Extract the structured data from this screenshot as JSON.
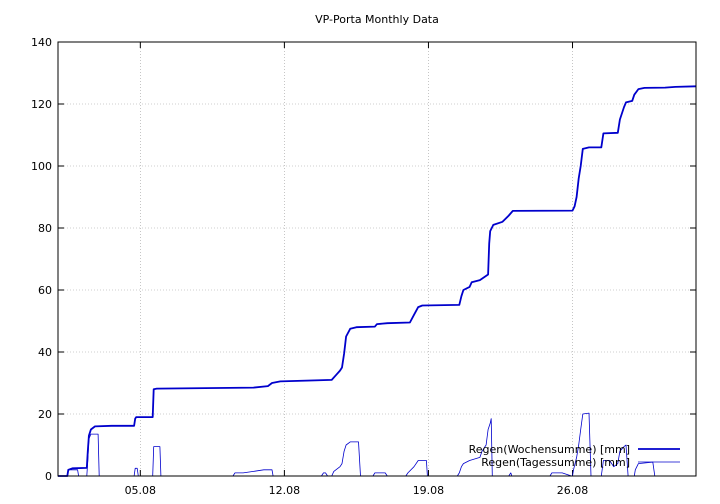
{
  "chart_data": {
    "type": "line",
    "title": "VP-Porta Monthly Data",
    "xlabel": "",
    "ylabel": "",
    "xlim": [
      0,
      31
    ],
    "ylim": [
      0,
      140
    ],
    "y_ticks": [
      0,
      20,
      40,
      60,
      80,
      100,
      120,
      140
    ],
    "x_ticks": [
      {
        "label": "05.08",
        "value": 4.0
      },
      {
        "label": "12.08",
        "value": 11.0
      },
      {
        "label": "19.08",
        "value": 18.0
      },
      {
        "label": "26.08",
        "value": 25.0
      }
    ],
    "grid": true,
    "legend_position": "bottom-right",
    "series": [
      {
        "name": "Regen(Wochensumme) [mm]",
        "color": "#0000cc",
        "style": "bold",
        "points": [
          [
            0,
            0
          ],
          [
            0.45,
            0
          ],
          [
            0.5,
            2
          ],
          [
            0.7,
            2.5
          ],
          [
            1.4,
            2.6
          ],
          [
            1.45,
            8
          ],
          [
            1.5,
            13
          ],
          [
            1.6,
            15
          ],
          [
            1.8,
            16
          ],
          [
            2.6,
            16.2
          ],
          [
            3.7,
            16.2
          ],
          [
            3.75,
            18.5
          ],
          [
            3.8,
            19
          ],
          [
            4.6,
            19
          ],
          [
            4.65,
            28
          ],
          [
            4.8,
            28.2
          ],
          [
            9.5,
            28.5
          ],
          [
            10.2,
            29
          ],
          [
            10.4,
            30
          ],
          [
            10.8,
            30.5
          ],
          [
            13.3,
            31
          ],
          [
            13.5,
            32.5
          ],
          [
            13.7,
            34
          ],
          [
            13.8,
            35
          ],
          [
            13.9,
            39.5
          ],
          [
            14.0,
            45
          ],
          [
            14.2,
            47.5
          ],
          [
            14.5,
            48
          ],
          [
            15.4,
            48.2
          ],
          [
            15.5,
            49
          ],
          [
            16.0,
            49.3
          ],
          [
            17.1,
            49.5
          ],
          [
            17.3,
            52
          ],
          [
            17.5,
            54.5
          ],
          [
            17.7,
            55
          ],
          [
            19.5,
            55.2
          ],
          [
            19.6,
            58
          ],
          [
            19.7,
            60
          ],
          [
            20.0,
            61
          ],
          [
            20.1,
            62.5
          ],
          [
            20.5,
            63.2
          ],
          [
            20.9,
            65
          ],
          [
            20.95,
            75
          ],
          [
            21.0,
            79
          ],
          [
            21.15,
            81
          ],
          [
            21.6,
            82
          ],
          [
            21.9,
            84
          ],
          [
            22.1,
            85.5
          ],
          [
            25.0,
            85.6
          ],
          [
            25.1,
            87
          ],
          [
            25.2,
            90
          ],
          [
            25.3,
            96
          ],
          [
            25.4,
            100
          ],
          [
            25.5,
            105.5
          ],
          [
            25.8,
            106
          ],
          [
            26.4,
            106
          ],
          [
            26.5,
            110.5
          ],
          [
            27.2,
            110.7
          ],
          [
            27.3,
            115
          ],
          [
            27.5,
            119
          ],
          [
            27.6,
            120.5
          ],
          [
            27.9,
            121
          ],
          [
            28.0,
            123
          ],
          [
            28.2,
            124.8
          ],
          [
            28.5,
            125.2
          ],
          [
            29.5,
            125.3
          ],
          [
            30.0,
            125.5
          ],
          [
            31.0,
            125.7
          ]
        ]
      },
      {
        "name": "Regen(Tagessumme) [mm]",
        "color": "#0000cc",
        "style": "thin",
        "points": [
          [
            0,
            0
          ],
          [
            0.45,
            0
          ],
          [
            0.5,
            2
          ],
          [
            0.95,
            2
          ],
          [
            1.0,
            0
          ],
          [
            1.4,
            0
          ],
          [
            1.45,
            5
          ],
          [
            1.5,
            12
          ],
          [
            1.6,
            13.5
          ],
          [
            1.95,
            13.5
          ],
          [
            2.0,
            0
          ],
          [
            3.7,
            0
          ],
          [
            3.75,
            2.5
          ],
          [
            3.85,
            2.5
          ],
          [
            3.9,
            0
          ],
          [
            4.6,
            0
          ],
          [
            4.65,
            9.5
          ],
          [
            4.95,
            9.5
          ],
          [
            5.0,
            0
          ],
          [
            8.5,
            0
          ],
          [
            8.6,
            1
          ],
          [
            9.0,
            1
          ],
          [
            9.5,
            1.5
          ],
          [
            10.0,
            2
          ],
          [
            10.4,
            2
          ],
          [
            10.45,
            0
          ],
          [
            12.8,
            0
          ],
          [
            12.9,
            1
          ],
          [
            13.0,
            1
          ],
          [
            13.1,
            0
          ],
          [
            13.3,
            0
          ],
          [
            13.4,
            1.5
          ],
          [
            13.7,
            3
          ],
          [
            13.8,
            4
          ],
          [
            13.9,
            8
          ],
          [
            14.0,
            10
          ],
          [
            14.2,
            11
          ],
          [
            14.6,
            11
          ],
          [
            14.7,
            0
          ],
          [
            15.3,
            0
          ],
          [
            15.4,
            1
          ],
          [
            15.9,
            1
          ],
          [
            16.0,
            0
          ],
          [
            16.9,
            0
          ],
          [
            17.0,
            1
          ],
          [
            17.3,
            3
          ],
          [
            17.5,
            5
          ],
          [
            17.9,
            5
          ],
          [
            17.95,
            0
          ],
          [
            19.4,
            0
          ],
          [
            19.5,
            1
          ],
          [
            19.6,
            3
          ],
          [
            19.7,
            4
          ],
          [
            20.0,
            5
          ],
          [
            20.5,
            6
          ],
          [
            20.6,
            8
          ],
          [
            20.8,
            10
          ],
          [
            20.9,
            15
          ],
          [
            21.0,
            17
          ],
          [
            21.05,
            18.5
          ],
          [
            21.1,
            0
          ],
          [
            21.9,
            0
          ],
          [
            22.0,
            1
          ],
          [
            22.05,
            0
          ],
          [
            23.9,
            0
          ],
          [
            24.0,
            1
          ],
          [
            24.5,
            1
          ],
          [
            24.95,
            0
          ],
          [
            25.0,
            0
          ],
          [
            25.05,
            2
          ],
          [
            25.2,
            6
          ],
          [
            25.3,
            10
          ],
          [
            25.4,
            15
          ],
          [
            25.5,
            20
          ],
          [
            25.8,
            20.3
          ],
          [
            25.9,
            0
          ],
          [
            26.4,
            0
          ],
          [
            26.5,
            5
          ],
          [
            26.8,
            5
          ],
          [
            27.0,
            3
          ],
          [
            27.2,
            4
          ],
          [
            27.3,
            8
          ],
          [
            27.5,
            9.5
          ],
          [
            27.6,
            10
          ],
          [
            27.7,
            0
          ],
          [
            28.0,
            0
          ],
          [
            28.05,
            2
          ],
          [
            28.2,
            4
          ],
          [
            28.5,
            4.2
          ],
          [
            28.9,
            4.5
          ],
          [
            29.0,
            0
          ]
        ]
      }
    ]
  }
}
